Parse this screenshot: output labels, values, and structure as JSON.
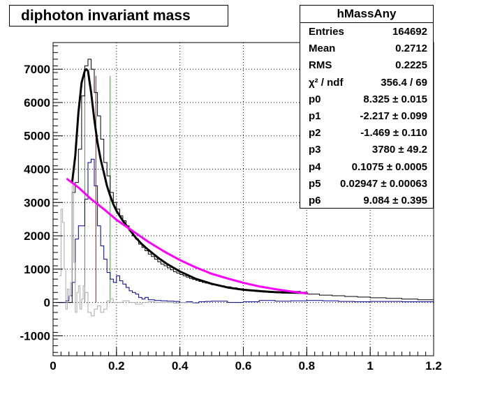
{
  "title": "diphoton invariant mass",
  "stats": {
    "name": "hMassAny",
    "rows": [
      {
        "label": "Entries",
        "value": "164692"
      },
      {
        "label": "Mean",
        "value": "0.2712"
      },
      {
        "label": "RMS",
        "value": "0.2225"
      },
      {
        "label": "χ² / ndf",
        "value": "356.4 / 69"
      },
      {
        "label": "p0",
        "value": "8.325 ± 0.015"
      },
      {
        "label": "p1",
        "value": "-2.217 ± 0.099"
      },
      {
        "label": "p2",
        "value": "-1.469 ± 0.110"
      },
      {
        "label": "p3",
        "value": "3780 ± 49.2"
      },
      {
        "label": "p4",
        "value": "0.1075 ± 0.0005"
      },
      {
        "label": "p5",
        "value": "0.02947 ± 0.00063"
      },
      {
        "label": "p6",
        "value": "9.084 ± 0.395"
      }
    ]
  },
  "chart_data": {
    "type": "line",
    "title": "diphoton invariant mass",
    "xlabel": "",
    "ylabel": "",
    "xlim": [
      0,
      1.2
    ],
    "ylim": [
      -1600,
      7800
    ],
    "xticks": [
      0,
      0.2,
      0.4,
      0.6,
      0.8,
      1,
      1.2
    ],
    "xtick_labels": [
      "0",
      "0.2",
      "0.4",
      "0.6",
      "0.8",
      "1",
      "1.2"
    ],
    "yticks": [
      -1000,
      0,
      1000,
      2000,
      3000,
      4000,
      5000,
      6000,
      7000
    ],
    "ytick_labels": [
      "-1000",
      "0",
      "1000",
      "2000",
      "3000",
      "4000",
      "5000",
      "6000",
      "7000"
    ],
    "grid": true,
    "vertical_lines": [
      {
        "x": 0.1,
        "color": "#00cc00"
      },
      {
        "x": 0.135,
        "color": "#cc0000"
      },
      {
        "x": 0.18,
        "color": "#00cc00"
      }
    ],
    "series": [
      {
        "kind": "hist",
        "color": "#000000",
        "x_edges": [
          0.02,
          0.03,
          0.04,
          0.05,
          0.06,
          0.07,
          0.08,
          0.09,
          0.1,
          0.11,
          0.12,
          0.13,
          0.14,
          0.15,
          0.16,
          0.17,
          0.18,
          0.19,
          0.2,
          0.21,
          0.22,
          0.23,
          0.24,
          0.25,
          0.26,
          0.27,
          0.28,
          0.29,
          0.3,
          0.31,
          0.32,
          0.33,
          0.34,
          0.35,
          0.36,
          0.37,
          0.38,
          0.39,
          0.4,
          0.41,
          0.42,
          0.43,
          0.44,
          0.45,
          0.46,
          0.47,
          0.48,
          0.49,
          0.5,
          0.52,
          0.54,
          0.56,
          0.58,
          0.6,
          0.62,
          0.64,
          0.66,
          0.68,
          0.7,
          0.72,
          0.74,
          0.76,
          0.78,
          0.8,
          0.84,
          0.88,
          0.92,
          0.96,
          1.0,
          1.05,
          1.1,
          1.15,
          1.2
        ],
        "values": [
          0,
          0,
          0,
          0,
          3300,
          3600,
          4600,
          6200,
          7100,
          7300,
          7000,
          6300,
          5600,
          4900,
          4200,
          3800,
          3300,
          3000,
          2800,
          2600,
          2450,
          2300,
          2150,
          2000,
          1900,
          1750,
          1650,
          1550,
          1450,
          1380,
          1300,
          1220,
          1150,
          1100,
          1040,
          980,
          920,
          880,
          840,
          800,
          760,
          720,
          690,
          660,
          630,
          600,
          580,
          560,
          530,
          500,
          470,
          440,
          410,
          380,
          350,
          330,
          310,
          300,
          290,
          280,
          290,
          330,
          280,
          250,
          220,
          200,
          180,
          160,
          140,
          120,
          100,
          80
        ]
      },
      {
        "kind": "hist",
        "color": "#00008b",
        "x_edges": [
          0.01,
          0.04,
          0.05,
          0.06,
          0.07,
          0.08,
          0.09,
          0.1,
          0.11,
          0.12,
          0.13,
          0.14,
          0.15,
          0.16,
          0.17,
          0.18,
          0.19,
          0.2,
          0.21,
          0.22,
          0.23,
          0.24,
          0.25,
          0.26,
          0.27,
          0.28,
          0.29,
          0.3,
          0.32,
          0.34,
          0.36,
          0.38,
          0.4,
          0.42,
          0.44,
          0.46,
          0.48,
          0.5,
          0.55,
          0.6,
          0.65,
          0.7,
          0.75,
          0.8,
          0.85,
          0.9,
          0.95,
          1.0,
          1.1,
          1.2
        ],
        "values": [
          0,
          50,
          200,
          600,
          1900,
          2300,
          2300,
          3100,
          4200,
          4300,
          3500,
          2300,
          1700,
          1300,
          900,
          700,
          600,
          800,
          650,
          550,
          450,
          350,
          300,
          250,
          150,
          100,
          150,
          80,
          60,
          50,
          40,
          30,
          0,
          20,
          -10,
          20,
          30,
          40,
          0,
          20,
          60,
          40,
          50,
          60,
          50,
          30,
          20,
          30,
          20
        ]
      },
      {
        "kind": "hist",
        "color": "#aaaaaa",
        "x_edges": [
          0.02,
          0.025,
          0.03,
          0.035,
          0.04,
          0.045,
          0.05,
          0.055,
          0.06,
          0.065,
          0.07,
          0.075,
          0.08,
          0.085,
          0.09,
          0.095,
          0.1,
          0.11,
          0.12,
          0.13,
          0.14,
          0.15,
          0.16,
          0.17,
          0.18,
          0.19,
          0.2,
          0.22,
          0.24,
          0.26,
          0.28,
          0.3,
          0.32,
          0.34,
          0.36,
          0.38,
          0.4,
          0.45
        ],
        "values": [
          800,
          2800,
          2400,
          1000,
          -200,
          400,
          200,
          600,
          3500,
          1200,
          -300,
          300,
          500,
          -200,
          100,
          500,
          300,
          -300,
          -400,
          -200,
          -100,
          -300,
          -200,
          50,
          100,
          0,
          0,
          50,
          0,
          -50,
          0,
          20,
          0,
          0,
          0,
          -20,
          0
        ]
      },
      {
        "kind": "curve",
        "name": "",
        "color": "#000000",
        "x": [
          0.06,
          0.07,
          0.08,
          0.09,
          0.1,
          0.105,
          0.11,
          0.12,
          0.13,
          0.14,
          0.15,
          0.16,
          0.17,
          0.18,
          0.19,
          0.2,
          0.22,
          0.24,
          0.26,
          0.28,
          0.3,
          0.33,
          0.36,
          0.4,
          0.45,
          0.5,
          0.55,
          0.6,
          0.65,
          0.7,
          0.75,
          0.8
        ],
        "y": [
          3600,
          4400,
          5700,
          6600,
          6950,
          7000,
          6950,
          6300,
          5500,
          4800,
          4300,
          3900,
          3500,
          3200,
          2950,
          2750,
          2450,
          2200,
          1950,
          1750,
          1580,
          1350,
          1150,
          930,
          710,
          560,
          450,
          380,
          340,
          310,
          295,
          285
        ]
      },
      {
        "kind": "curve",
        "name": "",
        "color": "#ff00ff",
        "x": [
          0.045,
          0.08,
          0.12,
          0.16,
          0.2,
          0.25,
          0.3,
          0.35,
          0.4,
          0.45,
          0.5,
          0.55,
          0.6,
          0.65,
          0.7,
          0.75,
          0.8
        ],
        "y": [
          3700,
          3450,
          3100,
          2800,
          2480,
          2150,
          1820,
          1530,
          1270,
          1050,
          860,
          720,
          590,
          480,
          400,
          330,
          270
        ]
      }
    ]
  }
}
